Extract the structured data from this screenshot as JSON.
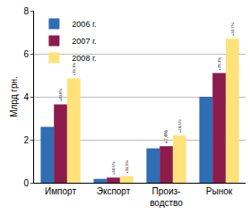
{
  "chart_data": {
    "type": "bar",
    "y_label": "Млрд грн.",
    "categories": [
      "Импорт",
      "Экспорт",
      "Произ-\nводство",
      "Рынок"
    ],
    "series": [
      {
        "name": "2006 г.",
        "color": "#2f6db5",
        "values": [
          2.6,
          0.18,
          1.6,
          4.0
        ]
      },
      {
        "name": "2007 г.",
        "color": "#8c1c4c",
        "values": [
          3.65,
          0.24,
          1.7,
          5.1
        ]
      },
      {
        "name": "2008 г.",
        "color": "#ffe27a",
        "values": [
          4.85,
          0.31,
          2.2,
          6.7
        ]
      }
    ],
    "annotations": [
      {
        "series": "2007 г.",
        "category": "Импорт",
        "text": "+40,8%"
      },
      {
        "series": "2008 г.",
        "category": "Импорт",
        "text": "+33,1%"
      },
      {
        "series": "2007 г.",
        "category": "Экспорт",
        "text": "+30,6%"
      },
      {
        "series": "2008 г.",
        "category": "Экспорт",
        "text": "+31,5%"
      },
      {
        "series": "2007 г.",
        "category": "Произ-\nводство",
        "text": "+7,4%"
      },
      {
        "series": "2008 г.",
        "category": "Произ-\nводство",
        "text": "+28,6%"
      },
      {
        "series": "2007 г.",
        "category": "Рынок",
        "text": "+28,1%"
      },
      {
        "series": "2008 г.",
        "category": "Рынок",
        "text": "+31,7%"
      }
    ],
    "ylim": [
      0,
      8
    ],
    "yticks": [
      0,
      2,
      4,
      6,
      8
    ],
    "grid": true,
    "legend": "top-left"
  }
}
